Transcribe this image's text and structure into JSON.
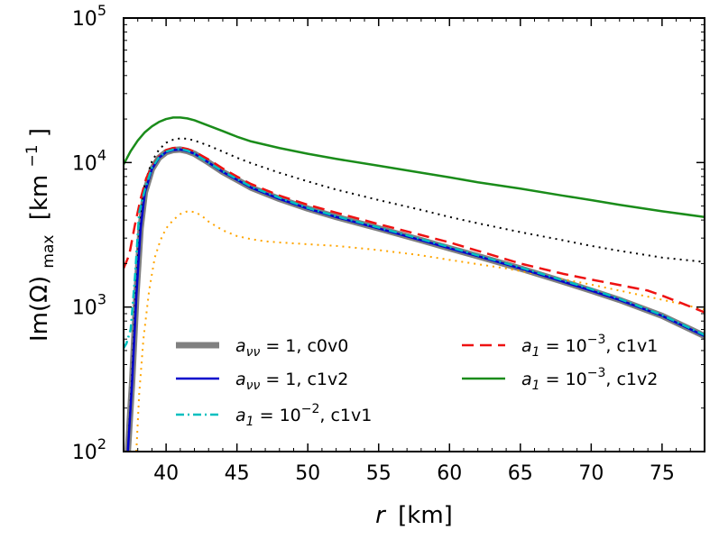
{
  "chart_data": {
    "type": "line",
    "xlabel_symbol": "r",
    "xlabel_unit": "[km]",
    "ylabel_main": "Im(Ω)",
    "ylabel_sub": "max",
    "ylabel_unit_open": "[km",
    "ylabel_unit_sup": "−1",
    "ylabel_unit_close": "]",
    "yscale": "log",
    "xlim": [
      37,
      78
    ],
    "ylim": [
      100,
      100000
    ],
    "grid": false,
    "legend_position": "lower-center",
    "x_ticks": [
      40,
      45,
      50,
      55,
      60,
      65,
      70,
      75
    ],
    "y_ticks": [
      {
        "value": 100,
        "base": "10",
        "exp": "2"
      },
      {
        "value": 1000,
        "base": "10",
        "exp": "3"
      },
      {
        "value": 10000,
        "base": "10",
        "exp": "4"
      },
      {
        "value": 100000,
        "base": "10",
        "exp": "5"
      }
    ],
    "series": [
      {
        "key": "s_c0v0",
        "label_var": "a",
        "label_sub": "νν",
        "label_rel": " = 1",
        "label_suffix": ", c0v0",
        "color": "#808080",
        "dash": "",
        "width": 7,
        "legend_order": 0,
        "x": [
          37.3,
          37.6,
          37.9,
          38.2,
          38.5,
          39,
          39.5,
          40,
          40.5,
          41,
          41.5,
          42,
          43,
          44,
          45,
          46,
          48,
          50,
          52,
          55,
          58,
          60,
          62,
          65,
          68,
          70,
          72,
          75,
          78
        ],
        "y": [
          100,
          300,
          1200,
          3500,
          6200,
          9000,
          10800,
          11800,
          12200,
          12300,
          12000,
          11500,
          10000,
          8600,
          7600,
          6700,
          5600,
          4800,
          4200,
          3500,
          2900,
          2550,
          2250,
          1850,
          1500,
          1300,
          1120,
          870,
          630
        ]
      },
      {
        "key": "s_avv_c1v2",
        "label_var": "a",
        "label_sub": "νν",
        "label_rel": " = 1",
        "label_suffix": ", c1v2",
        "color": "#0000cc",
        "dash": "",
        "width": 2.5,
        "legend_order": 1,
        "x": [
          37.3,
          37.6,
          37.9,
          38.2,
          38.5,
          39,
          39.5,
          40,
          40.5,
          41,
          41.5,
          42,
          43,
          44,
          45,
          46,
          48,
          50,
          52,
          55,
          58,
          60,
          62,
          65,
          68,
          70,
          72,
          75,
          78
        ],
        "y": [
          100,
          300,
          1200,
          3500,
          6200,
          9000,
          10800,
          11800,
          12200,
          12300,
          12000,
          11500,
          10000,
          8600,
          7600,
          6700,
          5600,
          4800,
          4200,
          3500,
          2900,
          2550,
          2250,
          1850,
          1500,
          1300,
          1120,
          870,
          630
        ]
      },
      {
        "key": "s_a1_1e-2_c1v1",
        "label_var": "a",
        "label_sub": "1",
        "label_rel": " = 10",
        "label_sup": "−2",
        "label_suffix": ", c1v1",
        "color": "#00bfbf",
        "dash": "9 4 2 4",
        "width": 2.5,
        "legend_order": 2,
        "x": [
          37,
          37.2,
          37.5,
          37.8,
          38.1,
          38.5,
          39,
          39.5,
          40,
          40.5,
          41,
          41.5,
          42,
          43,
          44,
          45,
          46,
          48,
          50,
          52,
          55,
          58,
          60,
          62,
          65,
          68,
          70,
          72,
          75,
          78
        ],
        "y": [
          520,
          560,
          700,
          1600,
          4500,
          6500,
          9200,
          10900,
          11900,
          12300,
          12400,
          12100,
          11500,
          10000,
          8700,
          7700,
          6800,
          5700,
          4850,
          4250,
          3550,
          2950,
          2600,
          2280,
          1880,
          1530,
          1330,
          1140,
          880,
          640
        ]
      },
      {
        "key": "s_a1_1e-3_c1v1",
        "label_var": "a",
        "label_sub": "1",
        "label_rel": " = 10",
        "label_sup": "−3",
        "label_suffix": ", c1v1",
        "color": "#ee1111",
        "dash": "13 7",
        "width": 2.5,
        "legend_order": 3,
        "x": [
          37,
          37.4,
          37.8,
          38.2,
          38.6,
          39,
          39.5,
          40,
          40.5,
          41,
          41.5,
          42,
          43,
          44,
          45,
          46,
          48,
          50,
          52,
          55,
          58,
          60,
          62,
          65,
          68,
          70,
          72,
          74,
          75,
          76,
          78
        ],
        "y": [
          1850,
          2300,
          3700,
          5600,
          7800,
          9400,
          11000,
          12200,
          12600,
          12700,
          12400,
          11900,
          10500,
          9100,
          8000,
          7100,
          5900,
          5100,
          4500,
          3750,
          3150,
          2800,
          2450,
          2000,
          1700,
          1550,
          1420,
          1300,
          1200,
          1100,
          920
        ]
      },
      {
        "key": "s_a1_1e-3_c1v2",
        "label_var": "a",
        "label_sub": "1",
        "label_rel": " = 10",
        "label_sup": "−3",
        "label_suffix": ", c1v2",
        "color": "#1a8c1a",
        "dash": "",
        "width": 2.5,
        "legend_order": 4,
        "x": [
          37,
          37.5,
          38,
          38.5,
          39,
          39.5,
          40,
          40.5,
          41,
          41.5,
          42,
          43,
          44,
          45,
          46,
          48,
          50,
          52,
          55,
          58,
          60,
          62,
          65,
          68,
          70,
          72,
          75,
          78
        ],
        "y": [
          9700,
          12000,
          14200,
          16200,
          17800,
          19100,
          20000,
          20500,
          20500,
          20200,
          19600,
          18000,
          16500,
          15100,
          14000,
          12600,
          11500,
          10600,
          9500,
          8500,
          7900,
          7300,
          6600,
          5900,
          5500,
          5100,
          4600,
          4200
        ]
      },
      {
        "key": "s_black_dotted",
        "color": "#000000",
        "dash": "2 5",
        "width": 2,
        "legend_order": -1,
        "x": [
          37.3,
          37.6,
          37.9,
          38.2,
          38.5,
          39,
          39.5,
          40,
          40.5,
          41,
          41.5,
          42,
          43,
          44,
          45,
          46,
          48,
          50,
          52,
          55,
          58,
          60,
          62,
          65,
          68,
          70,
          72,
          75,
          78
        ],
        "y": [
          100,
          350,
          1500,
          4200,
          7200,
          10200,
          12300,
          13700,
          14400,
          14700,
          14600,
          14200,
          13100,
          11900,
          10800,
          9900,
          8500,
          7400,
          6500,
          5500,
          4700,
          4200,
          3800,
          3300,
          2900,
          2650,
          2450,
          2200,
          2050
        ]
      },
      {
        "key": "s_orange_dotted",
        "color": "#ffa500",
        "dash": "2 5",
        "width": 2,
        "legend_order": -1,
        "x": [
          37.9,
          38.1,
          38.4,
          38.8,
          39.2,
          39.6,
          40,
          40.5,
          41,
          41.5,
          42,
          42.5,
          43,
          44,
          45,
          46,
          47,
          48,
          50,
          52,
          55,
          58,
          60,
          62,
          64,
          66,
          68,
          70,
          72,
          74,
          76,
          78
        ],
        "y": [
          100,
          250,
          600,
          1300,
          2200,
          2900,
          3500,
          4000,
          4400,
          4600,
          4550,
          4300,
          3900,
          3400,
          3100,
          2950,
          2850,
          2800,
          2720,
          2650,
          2480,
          2280,
          2120,
          1980,
          1850,
          1700,
          1560,
          1430,
          1300,
          1180,
          1070,
          960
        ]
      }
    ]
  }
}
